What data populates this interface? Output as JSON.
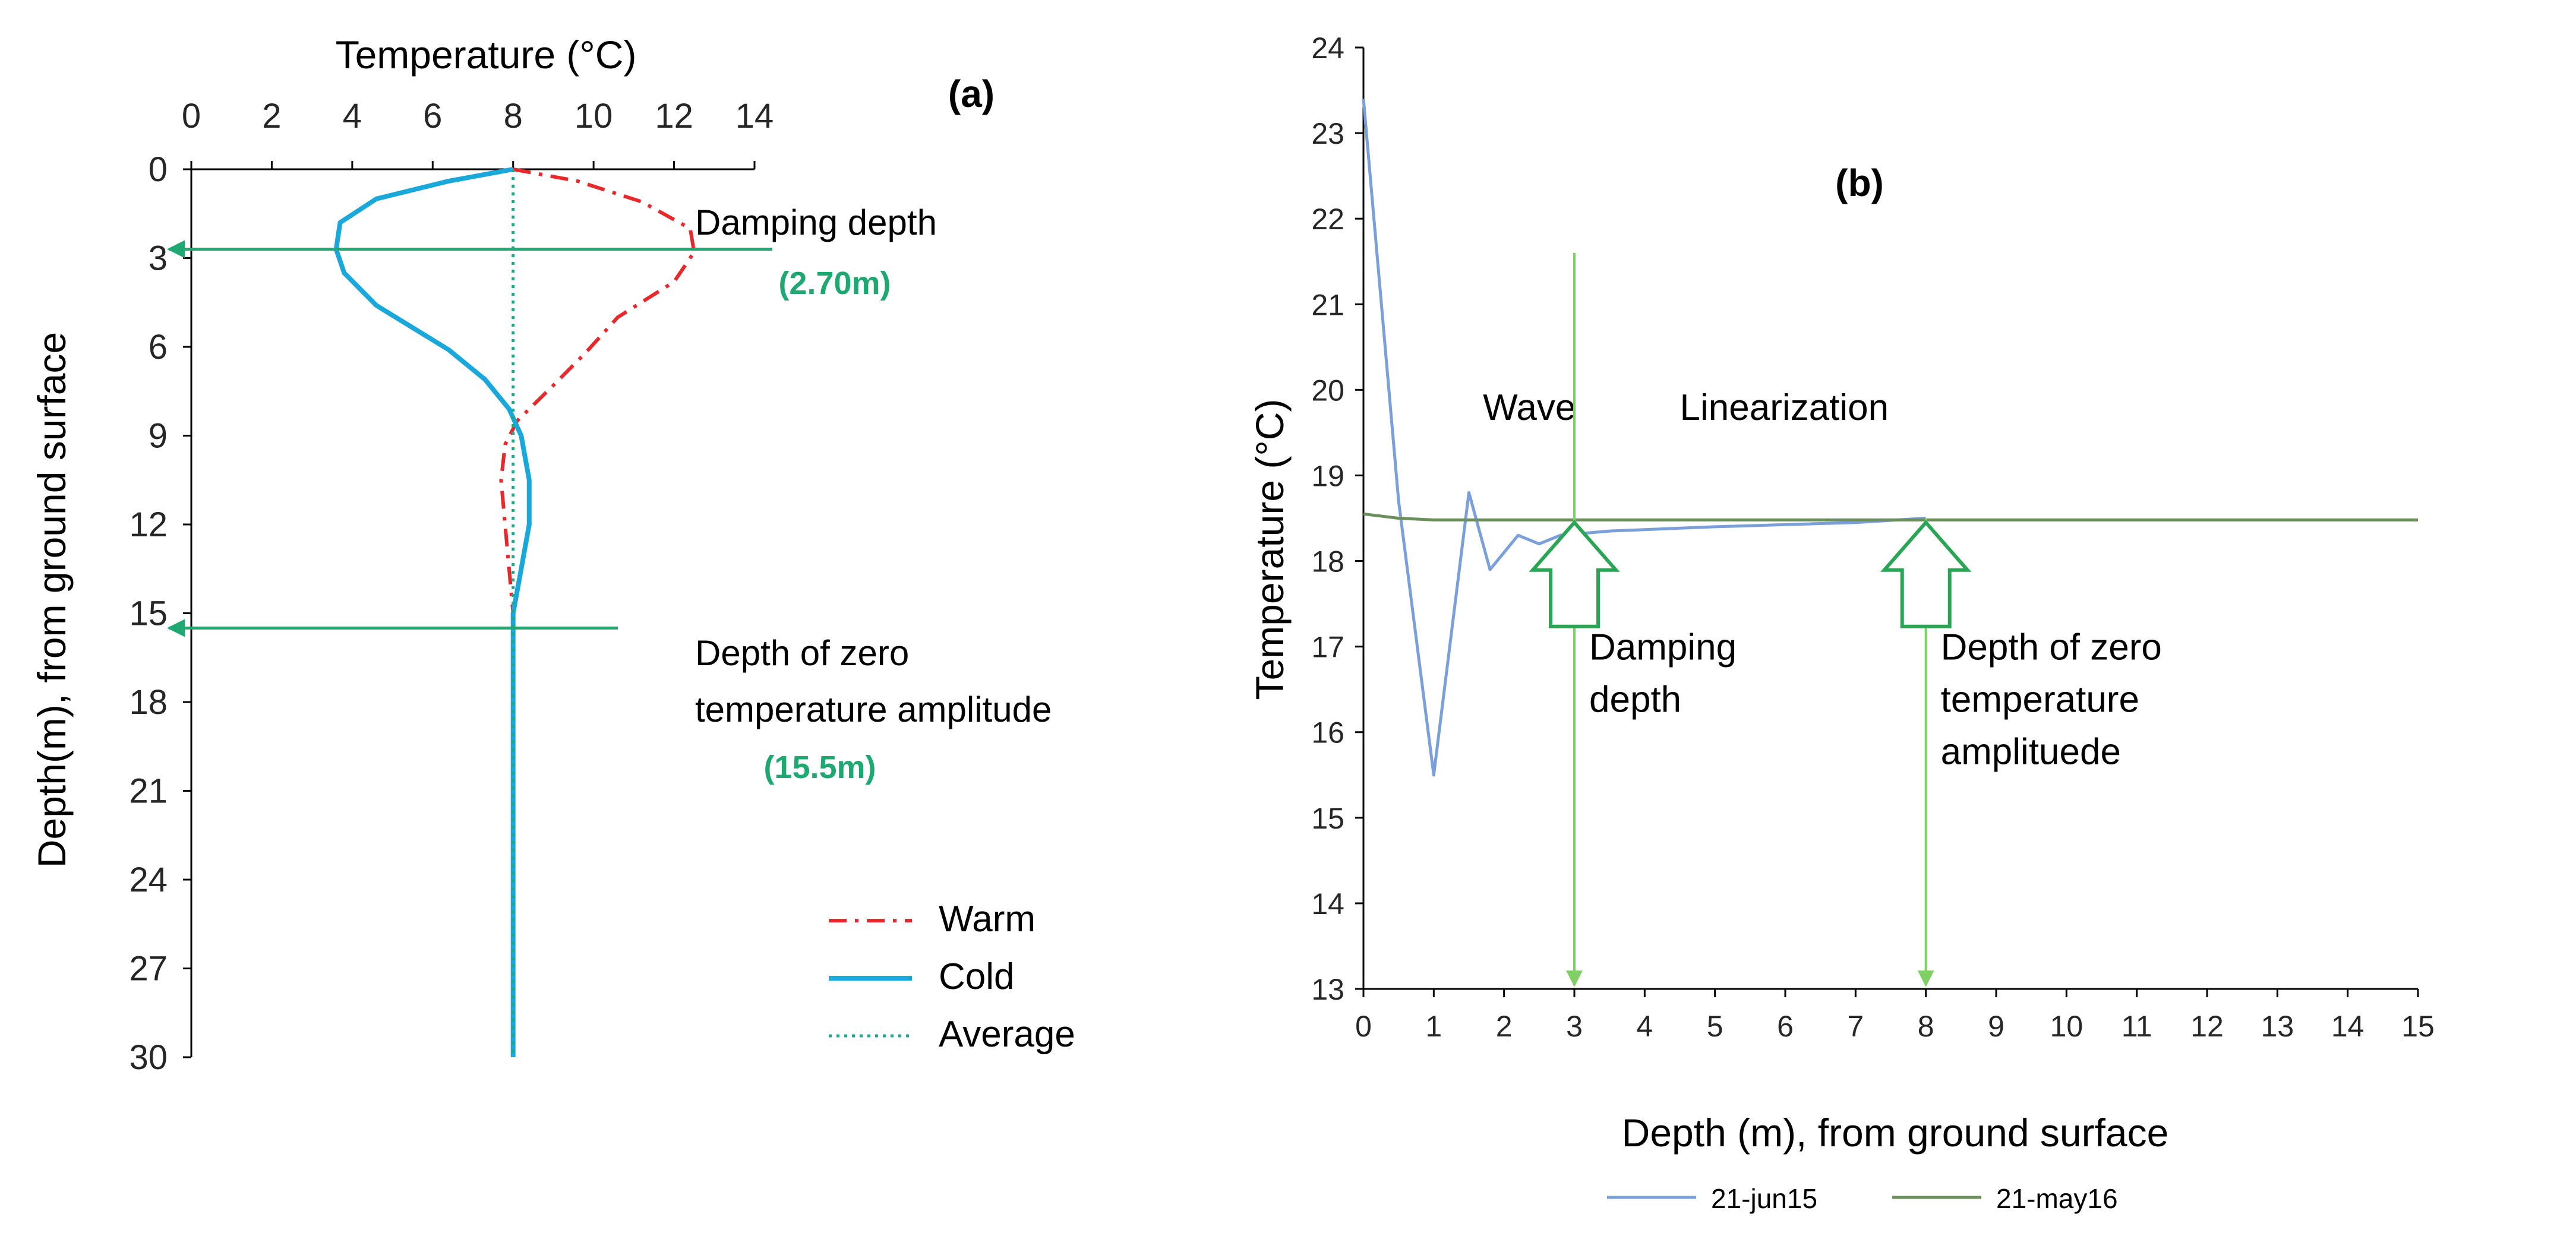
{
  "colors": {
    "warm": "#e8282b",
    "cold": "#1aa7d9",
    "average": "#1fa88a",
    "annotation": "#20a872",
    "jun15": "#7b9fd8",
    "may16": "#6b8f5a",
    "light_arrow": "#7fd062",
    "axis": "#000000",
    "tick_text": "#262626"
  },
  "chart_data": [
    {
      "id": "a",
      "type": "line",
      "panel_label": "(a)",
      "xlabel": "Temperature (°C)",
      "ylabel": "Depth(m), from ground surface",
      "xlim": [
        0,
        14
      ],
      "ylim": [
        0,
        30
      ],
      "y_inverted": true,
      "x_axis_position": "top",
      "x_ticks": [
        0,
        2,
        4,
        6,
        8,
        10,
        12,
        14
      ],
      "y_ticks": [
        0,
        3,
        6,
        9,
        12,
        15,
        18,
        21,
        24,
        27,
        30
      ],
      "grid": false,
      "legend_position": "bottom-right",
      "series": [
        {
          "name": "Warm",
          "style": "dash-dot",
          "points": [
            [
              8.0,
              0
            ],
            [
              9.6,
              0.4
            ],
            [
              11.2,
              1.1
            ],
            [
              12.4,
              2.0
            ],
            [
              12.5,
              2.8
            ],
            [
              12.0,
              3.8
            ],
            [
              10.6,
              5.0
            ],
            [
              9.8,
              6.2
            ],
            [
              9.0,
              7.3
            ],
            [
              8.1,
              8.5
            ],
            [
              7.8,
              9.3
            ],
            [
              7.7,
              10.5
            ],
            [
              7.8,
              12.0
            ],
            [
              7.9,
              13.5
            ],
            [
              8.0,
              15.0
            ],
            [
              8.0,
              30
            ]
          ]
        },
        {
          "name": "Cold",
          "style": "solid",
          "points": [
            [
              8.0,
              0
            ],
            [
              6.4,
              0.4
            ],
            [
              4.6,
              1.0
            ],
            [
              3.7,
              1.8
            ],
            [
              3.6,
              2.7
            ],
            [
              3.8,
              3.5
            ],
            [
              4.6,
              4.6
            ],
            [
              6.4,
              6.1
            ],
            [
              7.3,
              7.1
            ],
            [
              7.9,
              8.1
            ],
            [
              8.2,
              9.0
            ],
            [
              8.4,
              10.5
            ],
            [
              8.4,
              12.0
            ],
            [
              8.2,
              13.5
            ],
            [
              8.0,
              15.0
            ],
            [
              8.0,
              30
            ]
          ]
        },
        {
          "name": "Average",
          "style": "dotted",
          "points": [
            [
              8.0,
              0
            ],
            [
              8.0,
              30
            ]
          ]
        }
      ],
      "annotations": [
        {
          "text": "Damping depth",
          "value_text": "(2.70m)",
          "depth": 2.7
        },
        {
          "text_lines": [
            "Depth of zero",
            "temperature amplitude"
          ],
          "value_text": "(15.5m)",
          "depth": 15.5
        }
      ]
    },
    {
      "id": "b",
      "type": "line",
      "panel_label": "(b)",
      "xlabel": "Depth (m), from ground surface",
      "ylabel": "Temperature (°C)",
      "xlim": [
        0,
        15
      ],
      "ylim": [
        13,
        24
      ],
      "x_ticks": [
        0,
        1,
        2,
        3,
        4,
        5,
        6,
        7,
        8,
        9,
        10,
        11,
        12,
        13,
        14,
        15
      ],
      "y_ticks": [
        13,
        14,
        15,
        16,
        17,
        18,
        19,
        20,
        21,
        22,
        23,
        24
      ],
      "grid": false,
      "legend_position": "bottom-center",
      "series": [
        {
          "name": "21-jun15",
          "points": [
            [
              0,
              23.4
            ],
            [
              0.5,
              18.7
            ],
            [
              1.0,
              15.5
            ],
            [
              1.5,
              18.8
            ],
            [
              1.8,
              17.9
            ],
            [
              2.2,
              18.3
            ],
            [
              2.5,
              18.2
            ],
            [
              2.8,
              18.3
            ],
            [
              3.5,
              18.35
            ],
            [
              5,
              18.4
            ],
            [
              7,
              18.45
            ],
            [
              8,
              18.5
            ]
          ]
        },
        {
          "name": "21-may16",
          "points": [
            [
              0,
              18.55
            ],
            [
              0.5,
              18.5
            ],
            [
              1,
              18.48
            ],
            [
              2,
              18.48
            ],
            [
              3,
              18.48
            ],
            [
              8,
              18.48
            ],
            [
              15,
              18.48
            ]
          ]
        }
      ],
      "region_labels": [
        {
          "text": "Wave",
          "x": 1.7,
          "y": 19.65
        },
        {
          "text": "Linearization",
          "x": 4.5,
          "y": 19.65
        }
      ],
      "markers": [
        {
          "label_lines": [
            "Damping",
            "depth"
          ],
          "x": 3.0
        },
        {
          "label_lines": [
            "Depth of zero",
            "temperature",
            "amplituede"
          ],
          "x": 8.0
        }
      ]
    }
  ]
}
